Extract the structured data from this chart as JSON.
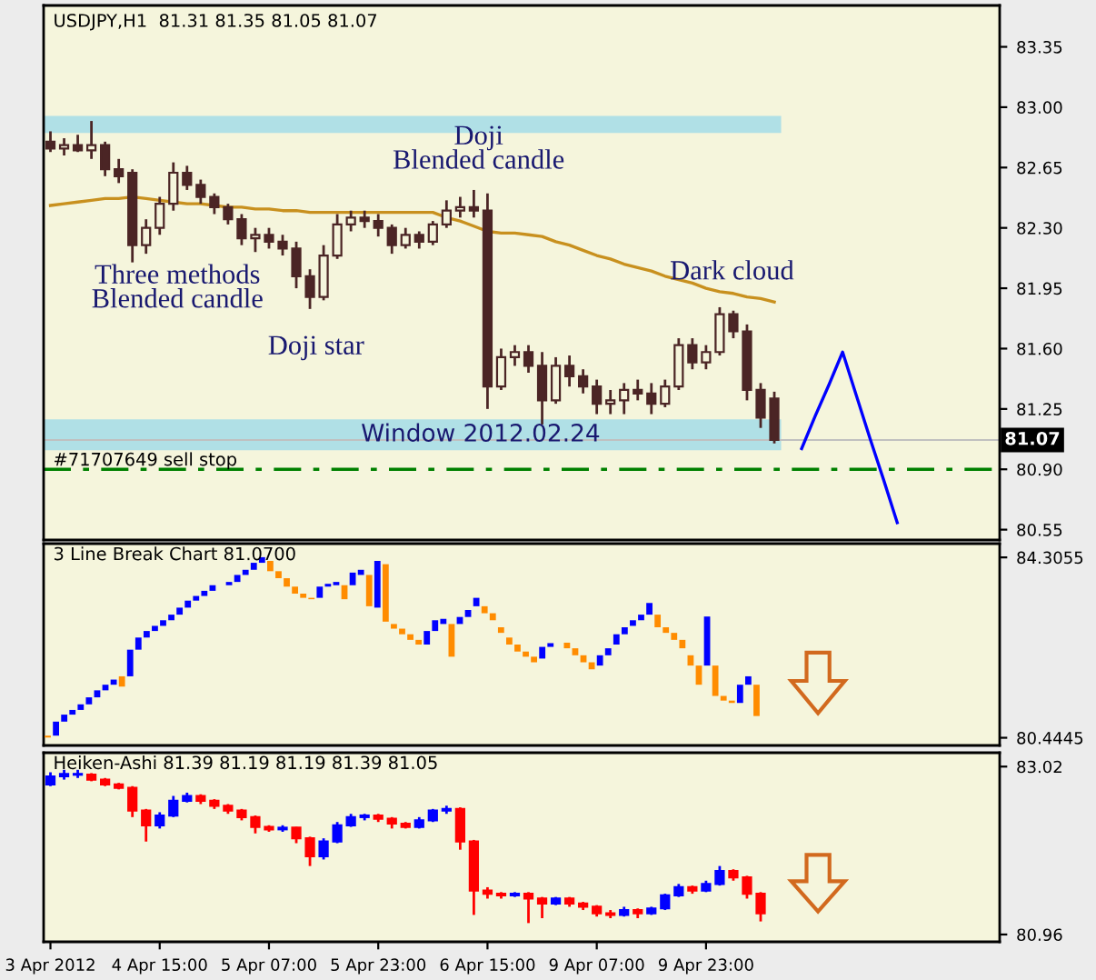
{
  "chart_data": [
    {
      "type": "candlestick",
      "title": "USDJPY,H1  81.31 81.35 81.05 81.07",
      "color": "#4b2525",
      "categories": [
        null,
        null,
        null,
        null,
        null,
        null,
        null,
        null,
        null,
        null,
        null,
        null,
        null,
        null,
        null,
        null,
        null,
        null,
        null,
        null,
        null,
        null,
        null,
        null,
        null,
        null,
        null,
        null,
        null,
        null,
        null,
        null,
        null,
        null,
        null,
        null,
        null,
        null,
        null,
        null,
        null,
        null,
        null,
        null,
        null,
        null,
        null,
        null,
        null,
        null,
        null,
        null,
        null,
        null,
        null,
        null,
        null,
        null,
        null,
        null,
        null,
        null,
        null,
        null,
        null,
        null,
        null,
        null,
        null,
        null
      ],
      "ohlc": [
        [
          82.8,
          82.86,
          82.74,
          82.76
        ],
        [
          82.76,
          82.82,
          82.72,
          82.78
        ],
        [
          82.78,
          82.84,
          82.74,
          82.75
        ],
        [
          82.75,
          82.92,
          82.7,
          82.78
        ],
        [
          82.78,
          82.8,
          82.6,
          82.64
        ],
        [
          82.64,
          82.7,
          82.56,
          82.6
        ],
        [
          82.62,
          82.64,
          82.1,
          82.2
        ],
        [
          82.2,
          82.35,
          82.15,
          82.3
        ],
        [
          82.3,
          82.48,
          82.26,
          82.44
        ],
        [
          82.44,
          82.68,
          82.4,
          82.62
        ],
        [
          82.62,
          82.66,
          82.52,
          82.55
        ],
        [
          82.55,
          82.58,
          82.44,
          82.48
        ],
        [
          82.48,
          82.5,
          82.38,
          82.42
        ],
        [
          82.42,
          82.44,
          82.32,
          82.35
        ],
        [
          82.35,
          82.38,
          82.2,
          82.24
        ],
        [
          82.24,
          82.3,
          82.16,
          82.26
        ],
        [
          82.26,
          82.3,
          82.18,
          82.22
        ],
        [
          82.22,
          82.26,
          82.14,
          82.18
        ],
        [
          82.18,
          82.22,
          81.95,
          82.02
        ],
        [
          82.02,
          82.06,
          81.83,
          81.9
        ],
        [
          81.9,
          82.2,
          81.88,
          82.14
        ],
        [
          82.14,
          82.38,
          82.12,
          82.32
        ],
        [
          82.32,
          82.4,
          82.28,
          82.36
        ],
        [
          82.36,
          82.4,
          82.3,
          82.34
        ],
        [
          82.34,
          82.38,
          82.25,
          82.3
        ],
        [
          82.3,
          82.32,
          82.15,
          82.2
        ],
        [
          82.2,
          82.3,
          82.18,
          82.26
        ],
        [
          82.26,
          82.28,
          82.18,
          82.22
        ],
        [
          82.22,
          82.34,
          82.2,
          82.32
        ],
        [
          82.32,
          82.46,
          82.3,
          82.4
        ],
        [
          82.4,
          82.48,
          82.36,
          82.42
        ],
        [
          82.42,
          82.52,
          82.36,
          82.4
        ],
        [
          82.4,
          82.5,
          81.25,
          81.38
        ],
        [
          81.38,
          81.6,
          81.36,
          81.55
        ],
        [
          81.55,
          81.62,
          81.5,
          81.58
        ],
        [
          81.58,
          81.62,
          81.46,
          81.5
        ],
        [
          81.5,
          81.58,
          81.16,
          81.3
        ],
        [
          81.3,
          81.55,
          81.28,
          81.5
        ],
        [
          81.5,
          81.56,
          81.38,
          81.44
        ],
        [
          81.44,
          81.48,
          81.34,
          81.38
        ],
        [
          81.38,
          81.42,
          81.22,
          81.28
        ],
        [
          81.28,
          81.36,
          81.22,
          81.3
        ],
        [
          81.3,
          81.4,
          81.22,
          81.36
        ],
        [
          81.36,
          81.42,
          81.3,
          81.34
        ],
        [
          81.34,
          81.4,
          81.22,
          81.28
        ],
        [
          81.28,
          81.42,
          81.26,
          81.38
        ],
        [
          81.38,
          81.66,
          81.36,
          81.62
        ],
        [
          81.62,
          81.66,
          81.48,
          81.52
        ],
        [
          81.52,
          81.62,
          81.48,
          81.58
        ],
        [
          81.58,
          81.84,
          81.56,
          81.8
        ],
        [
          81.8,
          81.82,
          81.66,
          81.7
        ],
        [
          81.7,
          81.74,
          81.3,
          81.36
        ],
        [
          81.36,
          81.4,
          81.14,
          81.2
        ],
        [
          81.31,
          81.35,
          81.05,
          81.07
        ],
        null,
        null,
        null,
        null,
        null,
        null,
        null,
        null,
        null,
        null,
        null,
        null,
        null,
        null,
        null,
        null
      ],
      "series": [
        {
          "type": "line",
          "color": "#c8901e",
          "values": [
            82.43,
            82.44,
            82.45,
            82.46,
            82.47,
            82.47,
            82.48,
            82.47,
            82.46,
            82.45,
            82.44,
            82.44,
            82.43,
            82.42,
            82.42,
            82.41,
            82.41,
            82.4,
            82.4,
            82.39,
            82.39,
            82.39,
            82.39,
            82.39,
            82.39,
            82.39,
            82.39,
            82.39,
            82.39,
            82.36,
            82.34,
            82.31,
            82.28,
            82.27,
            82.27,
            82.26,
            82.25,
            82.22,
            82.2,
            82.17,
            82.14,
            82.12,
            82.09,
            82.07,
            82.05,
            82.02,
            82.0,
            81.98,
            81.95,
            81.93,
            81.92,
            81.9,
            81.89,
            81.87,
            null,
            null,
            null,
            null,
            null,
            null,
            null,
            null,
            null,
            null,
            null,
            null,
            null,
            null,
            null,
            null
          ]
        },
        {
          "type": "line",
          "color": "#0000ff",
          "values": [
            null,
            null,
            null,
            null,
            null,
            null,
            null,
            null,
            null,
            null,
            null,
            null,
            null,
            null,
            null,
            null,
            null,
            null,
            null,
            null,
            null,
            null,
            null,
            null,
            null,
            null,
            null,
            null,
            null,
            null,
            null,
            null,
            null,
            null,
            null,
            null,
            null,
            null,
            null,
            null,
            null,
            null,
            null,
            null,
            null,
            null,
            null,
            null,
            null,
            null,
            null,
            null,
            null,
            null,
            null,
            81.02,
            81.21,
            81.39,
            81.58,
            81.33,
            81.08,
            80.84,
            80.59,
            null,
            null,
            null,
            null,
            null,
            null,
            null
          ]
        }
      ],
      "ylim": [
        80.49,
        83.59
      ],
      "yticks": [
        {
          "value": 83.35,
          "label": "83.35"
        },
        {
          "value": 83.0,
          "label": "83.00"
        },
        {
          "value": 82.65,
          "label": "82.65"
        },
        {
          "value": 82.3,
          "label": "82.30"
        },
        {
          "value": 81.95,
          "label": "81.95"
        },
        {
          "value": 81.6,
          "label": "81.60"
        },
        {
          "value": 81.25,
          "label": "81.25"
        },
        {
          "value": 80.9,
          "label": "80.90"
        },
        {
          "value": 80.55,
          "label": "80.55"
        }
      ],
      "tick_labels": "y",
      "bands": [
        {
          "axis": "y",
          "from": 82.85,
          "to": 82.95,
          "color": "#b0e0e6"
        },
        {
          "axis": "y",
          "from": 81.01,
          "to": 81.19,
          "label": "Window 2012.02.24",
          "color": "#b0e0e6"
        }
      ],
      "ref_lines": [
        {
          "axis": "y",
          "value": 81.07,
          "label": "81.07",
          "color": "#c0c0c0"
        },
        {
          "axis": "y",
          "value": 80.9,
          "label": "#71707649 sell stop",
          "color": "#008000",
          "line_style": "dashed"
        }
      ],
      "annotations": [
        "Three methods\nBlended candle",
        "Doji star",
        "Doji\nBlended candle",
        "Dark cloud"
      ]
    },
    {
      "type": "bar",
      "title": "3 Line Break Chart 81.0700",
      "categories": [
        null,
        null,
        null,
        null,
        null,
        null,
        null,
        null,
        null,
        null,
        null,
        null,
        null,
        null,
        null,
        null,
        null,
        null,
        null,
        null,
        null,
        null,
        null,
        null,
        null,
        null,
        null,
        null,
        null,
        null,
        null,
        null,
        null,
        null,
        null,
        null,
        null,
        null,
        null,
        null,
        null,
        null,
        null,
        null,
        null,
        null,
        null,
        null,
        null,
        null,
        null,
        null,
        null,
        null,
        null,
        null,
        null,
        null,
        null,
        null,
        null,
        null,
        null,
        null,
        null,
        null,
        null,
        null,
        null,
        null,
        null,
        null,
        null,
        null,
        null,
        null,
        null,
        null,
        null,
        null,
        null,
        null,
        null,
        null,
        null,
        null,
        null,
        null,
        null,
        null,
        null,
        null,
        null,
        null,
        null,
        null,
        null,
        null,
        null,
        null,
        null,
        null,
        null,
        null,
        null,
        null,
        null,
        null,
        null,
        null,
        null,
        null,
        null,
        null,
        null,
        null
      ],
      "base": [
        80.45,
        80.49,
        80.79,
        80.94,
        81.04,
        81.16,
        81.31,
        81.46,
        81.58,
        81.54,
        81.76,
        82.33,
        82.59,
        82.73,
        82.84,
        82.96,
        83.08,
        83.23,
        83.38,
        83.48,
        83.59,
        null,
        83.71,
        83.78,
        83.93,
        84.04,
        84.19,
        84.01,
        83.86,
        83.68,
        83.53,
        83.44,
        83.41,
        83.44,
        83.68,
        83.71,
        83.41,
        83.71,
        83.93,
        83.26,
        83.23,
        82.93,
        82.78,
        82.66,
        82.54,
        82.44,
        82.44,
        82.73,
        82.88,
        82.18,
        82.88,
        83.03,
        83.26,
        83.11,
        82.96,
        82.69,
        82.44,
        82.29,
        82.18,
        82.06,
        82.14,
        82.39,
        null,
        82.36,
        82.21,
        82.06,
        81.91,
        81.99,
        82.21,
        82.44,
        82.66,
        82.84,
        82.96,
        83.08,
        82.81,
        82.69,
        82.54,
        82.36,
        81.99,
        81.58,
        81.99,
        81.34,
        81.24,
        81.19,
        81.19,
        81.58,
        80.91,
        null,
        null,
        null,
        null,
        null,
        null,
        null,
        null,
        null,
        null,
        null,
        null,
        null,
        null,
        null,
        null,
        null,
        null,
        null,
        null,
        null,
        null,
        null,
        null,
        null,
        null,
        null,
        null,
        null
      ],
      "values": [
        0.04,
        0.3,
        0.15,
        0.1,
        0.12,
        0.15,
        0.15,
        0.12,
        0.11,
        0.22,
        0.57,
        0.26,
        0.14,
        0.11,
        0.12,
        0.12,
        0.15,
        0.15,
        0.1,
        0.11,
        0.12,
        null,
        0.07,
        0.15,
        0.11,
        0.15,
        0.12,
        0.22,
        0.15,
        0.18,
        0.15,
        0.09,
        0.03,
        0.24,
        0.06,
        0.07,
        0.3,
        0.27,
        0.11,
        0.67,
        1.0,
        1.23,
        0.1,
        0.12,
        0.12,
        0.1,
        0.29,
        0.23,
        0.11,
        0.7,
        0.15,
        0.15,
        0.18,
        0.15,
        0.15,
        0.12,
        0.15,
        0.15,
        0.11,
        0.12,
        0.25,
        0.08,
        null,
        0.12,
        0.15,
        0.15,
        0.15,
        0.22,
        0.15,
        0.22,
        0.15,
        0.12,
        0.12,
        0.25,
        0.27,
        0.12,
        0.15,
        0.18,
        0.22,
        0.41,
        1.05,
        0.65,
        0.1,
        0.05,
        0.39,
        0.18,
        0.67,
        null,
        null,
        null,
        null,
        null,
        null,
        null,
        null,
        null,
        null,
        null,
        null,
        null,
        null,
        null,
        null,
        null,
        null,
        null,
        null,
        null,
        null,
        null,
        null,
        null,
        null,
        null,
        null,
        null
      ],
      "colors": [
        "#ff8c00",
        "#0000ff",
        "#0000ff",
        "#0000ff",
        "#0000ff",
        "#0000ff",
        "#0000ff",
        "#0000ff",
        "#0000ff",
        "#ff8c00",
        "#0000ff",
        "#0000ff",
        "#0000ff",
        "#0000ff",
        "#0000ff",
        "#0000ff",
        "#0000ff",
        "#0000ff",
        "#0000ff",
        "#0000ff",
        "#0000ff",
        null,
        "#0000ff",
        "#0000ff",
        "#0000ff",
        "#0000ff",
        "#0000ff",
        "#ff8c00",
        "#ff8c00",
        "#ff8c00",
        "#ff8c00",
        "#ff8c00",
        "#ff8c00",
        "#0000ff",
        "#0000ff",
        "#0000ff",
        "#ff8c00",
        "#0000ff",
        "#0000ff",
        "#ff8c00",
        "#0000ff",
        "#ff8c00",
        "#ff8c00",
        "#ff8c00",
        "#ff8c00",
        "#ff8c00",
        "#0000ff",
        "#0000ff",
        "#0000ff",
        "#ff8c00",
        "#0000ff",
        "#0000ff",
        "#0000ff",
        "#ff8c00",
        "#ff8c00",
        "#ff8c00",
        "#ff8c00",
        "#ff8c00",
        "#ff8c00",
        "#ff8c00",
        "#0000ff",
        "#0000ff",
        null,
        "#ff8c00",
        "#ff8c00",
        "#ff8c00",
        "#ff8c00",
        "#0000ff",
        "#0000ff",
        "#0000ff",
        "#0000ff",
        "#0000ff",
        "#0000ff",
        "#0000ff",
        "#ff8c00",
        "#ff8c00",
        "#ff8c00",
        "#ff8c00",
        "#ff8c00",
        "#ff8c00",
        "#0000ff",
        "#ff8c00",
        "#ff8c00",
        "#ff8c00",
        "#0000ff",
        "#0000ff",
        "#ff8c00",
        null,
        null,
        null,
        null,
        null,
        null,
        null,
        null,
        null,
        null,
        null,
        null,
        null,
        null,
        null,
        null,
        null,
        null,
        null,
        null,
        null,
        null,
        null,
        null,
        null,
        null,
        null,
        null,
        null
      ],
      "ylim": [
        80.28,
        84.6
      ],
      "yticks": [
        84.3055,
        80.4445
      ]
    },
    {
      "type": "candlestick",
      "title": "Heiken-Ashi 81.39 81.19 81.19 81.39 81.05",
      "categories": [
        "3 Apr 2012",
        null,
        null,
        null,
        null,
        null,
        null,
        null,
        "4 Apr 15:00",
        null,
        null,
        null,
        null,
        null,
        null,
        null,
        "5 Apr 07:00",
        null,
        null,
        null,
        null,
        null,
        null,
        null,
        "5 Apr 23:00",
        null,
        null,
        null,
        null,
        null,
        null,
        null,
        "6 Apr 15:00",
        null,
        null,
        null,
        null,
        null,
        null,
        null,
        "9 Apr 07:00",
        null,
        null,
        null,
        null,
        null,
        null,
        null,
        "9 Apr 23:00",
        null,
        null,
        null,
        null,
        null,
        null,
        null,
        null,
        null,
        null,
        null,
        null,
        null,
        null,
        null,
        null,
        null,
        null,
        null,
        null,
        null
      ],
      "ohlc": [
        [
          82.8,
          82.95,
          82.78,
          82.9
        ],
        [
          82.9,
          82.98,
          82.86,
          82.93
        ],
        [
          82.93,
          82.98,
          82.88,
          82.92
        ],
        [
          82.92,
          82.94,
          82.84,
          82.86
        ],
        [
          82.86,
          82.88,
          82.78,
          82.8
        ],
        [
          82.8,
          82.82,
          82.74,
          82.76
        ],
        [
          82.76,
          82.78,
          82.4,
          82.48
        ],
        [
          82.48,
          82.5,
          82.1,
          82.3
        ],
        [
          82.3,
          82.46,
          82.26,
          82.42
        ],
        [
          82.42,
          82.66,
          82.4,
          82.6
        ],
        [
          82.6,
          82.7,
          82.58,
          82.66
        ],
        [
          82.66,
          82.68,
          82.56,
          82.6
        ],
        [
          82.6,
          82.62,
          82.5,
          82.54
        ],
        [
          82.54,
          82.56,
          82.44,
          82.48
        ],
        [
          82.48,
          82.5,
          82.36,
          82.4
        ],
        [
          82.4,
          82.42,
          82.2,
          82.28
        ],
        [
          82.28,
          82.3,
          82.22,
          82.25
        ],
        [
          82.25,
          82.3,
          82.22,
          82.27
        ],
        [
          82.27,
          82.28,
          82.08,
          82.14
        ],
        [
          82.14,
          82.16,
          81.8,
          81.92
        ],
        [
          81.92,
          82.14,
          81.88,
          82.1
        ],
        [
          82.1,
          82.34,
          82.08,
          82.3
        ],
        [
          82.3,
          82.44,
          82.28,
          82.4
        ],
        [
          82.4,
          82.44,
          82.36,
          82.42
        ],
        [
          82.42,
          82.44,
          82.34,
          82.38
        ],
        [
          82.38,
          82.4,
          82.26,
          82.32
        ],
        [
          82.32,
          82.34,
          82.26,
          82.28
        ],
        [
          82.28,
          82.4,
          82.26,
          82.36
        ],
        [
          82.36,
          82.5,
          82.34,
          82.48
        ],
        [
          82.48,
          82.54,
          82.44,
          82.5
        ],
        [
          82.5,
          82.52,
          82.0,
          82.1
        ],
        [
          82.1,
          82.12,
          81.2,
          81.5
        ],
        [
          81.5,
          81.54,
          81.4,
          81.46
        ],
        [
          81.46,
          81.48,
          81.4,
          81.44
        ],
        [
          81.44,
          81.48,
          81.42,
          81.46
        ],
        [
          81.46,
          81.48,
          81.1,
          81.4
        ],
        [
          81.4,
          81.42,
          81.16,
          81.34
        ],
        [
          81.34,
          81.42,
          81.32,
          81.4
        ],
        [
          81.4,
          81.42,
          81.3,
          81.34
        ],
        [
          81.34,
          81.36,
          81.26,
          81.3
        ],
        [
          81.3,
          81.32,
          81.18,
          81.22
        ],
        [
          81.22,
          81.26,
          81.16,
          81.2
        ],
        [
          81.2,
          81.3,
          81.18,
          81.26
        ],
        [
          81.26,
          81.28,
          81.16,
          81.22
        ],
        [
          81.22,
          81.3,
          81.2,
          81.28
        ],
        [
          81.28,
          81.46,
          81.26,
          81.44
        ],
        [
          81.44,
          81.58,
          81.42,
          81.54
        ],
        [
          81.54,
          81.56,
          81.46,
          81.5
        ],
        [
          81.5,
          81.62,
          81.48,
          81.58
        ],
        [
          81.58,
          81.8,
          81.56,
          81.74
        ],
        [
          81.74,
          81.76,
          81.62,
          81.66
        ],
        [
          81.66,
          81.68,
          81.4,
          81.46
        ],
        [
          81.46,
          81.48,
          81.12,
          81.22
        ],
        null,
        null,
        null,
        null,
        null,
        null,
        null,
        null,
        null,
        null,
        null,
        null,
        null,
        null,
        null,
        null,
        null
      ],
      "colors": [
        "#0000ff",
        "#0000ff",
        "#0000ff",
        "#ff0000",
        "#ff0000",
        "#ff0000",
        "#ff0000",
        "#ff0000",
        "#0000ff",
        "#0000ff",
        "#0000ff",
        "#ff0000",
        "#ff0000",
        "#ff0000",
        "#ff0000",
        "#ff0000",
        "#ff0000",
        "#0000ff",
        "#ff0000",
        "#ff0000",
        "#0000ff",
        "#0000ff",
        "#0000ff",
        "#0000ff",
        "#ff0000",
        "#ff0000",
        "#ff0000",
        "#0000ff",
        "#0000ff",
        "#0000ff",
        "#ff0000",
        "#ff0000",
        "#ff0000",
        "#ff0000",
        "#0000ff",
        "#ff0000",
        "#ff0000",
        "#0000ff",
        "#ff0000",
        "#ff0000",
        "#ff0000",
        "#ff0000",
        "#0000ff",
        "#ff0000",
        "#0000ff",
        "#0000ff",
        "#0000ff",
        "#ff0000",
        "#0000ff",
        "#0000ff",
        "#ff0000",
        "#ff0000",
        "#ff0000",
        null,
        null,
        null,
        null,
        null,
        null,
        null,
        null,
        null,
        null,
        null,
        null,
        null,
        null,
        null,
        null,
        null
      ],
      "ylim": [
        80.87,
        83.19
      ],
      "yticks": [
        {
          "value": 83.02,
          "label": "83.02"
        },
        {
          "value": 80.96,
          "label": "80.96"
        }
      ]
    }
  ]
}
